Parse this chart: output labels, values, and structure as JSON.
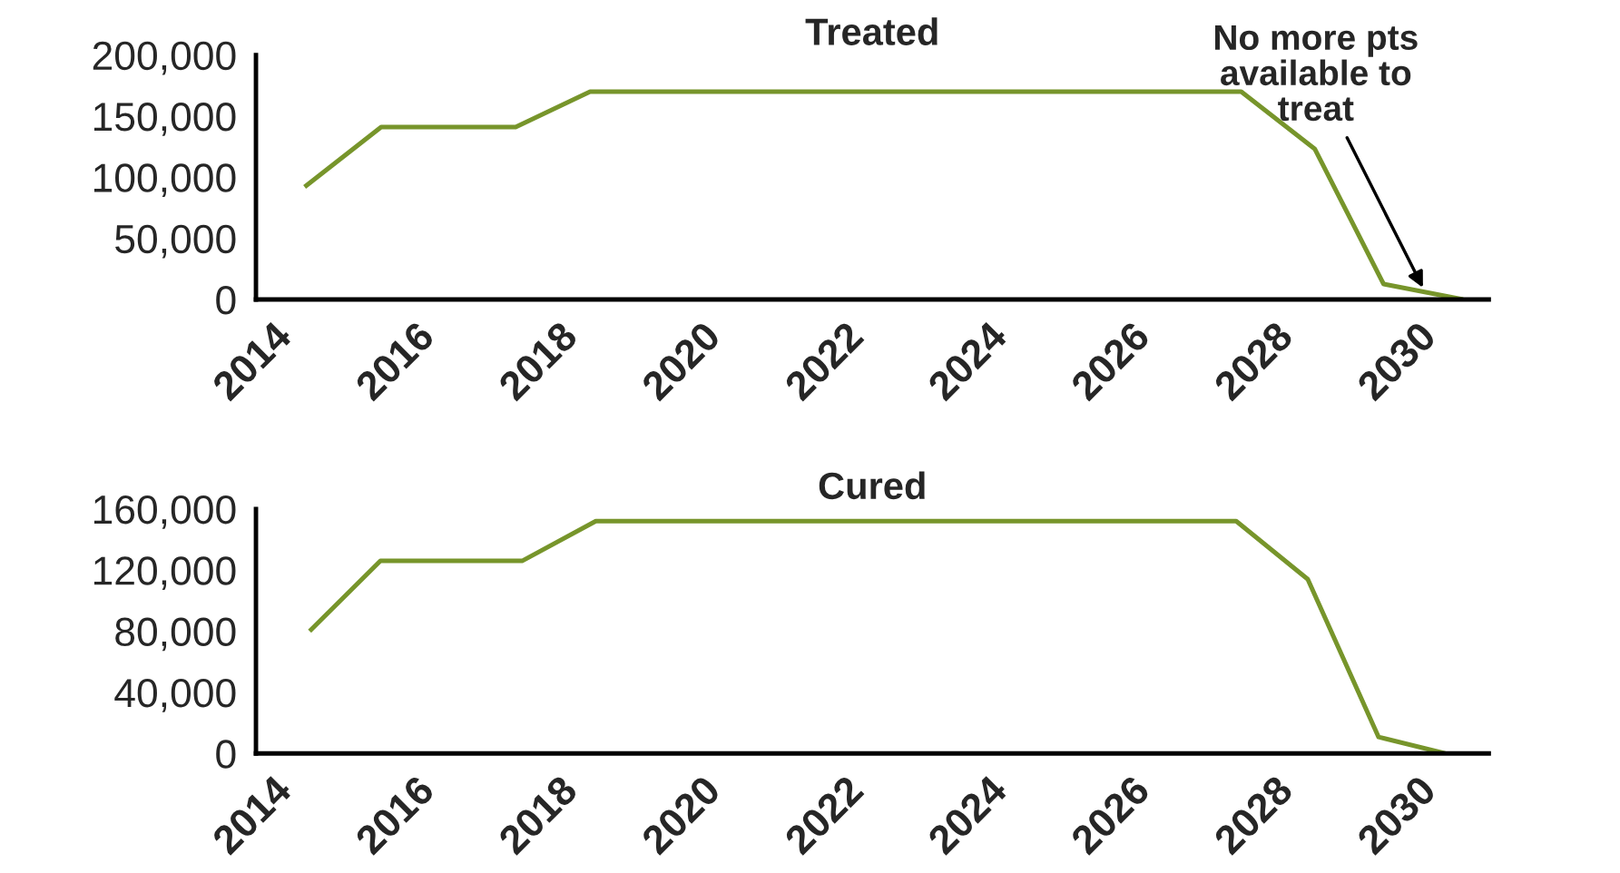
{
  "chart_data": [
    {
      "type": "line",
      "title": "Treated",
      "x": [
        2014.45,
        2015.52,
        2017.4,
        2018.44,
        2027.54,
        2028.57,
        2029.53,
        2030.64
      ],
      "series": [
        {
          "color": "#77952b",
          "values": [
            92000,
            141000,
            141000,
            170000,
            170000,
            123000,
            12600,
            0
          ]
        }
      ],
      "xlim": [
        2013.77,
        2031
      ],
      "xticks": [
        2014,
        2016,
        2018,
        2020,
        2022,
        2024,
        2026,
        2028,
        2030
      ],
      "ylim": [
        0,
        200000
      ],
      "yticks": [
        0,
        {
          "value": 50000,
          "label": "50,000"
        },
        {
          "value": 100000,
          "label": "100,000"
        },
        {
          "value": 150000,
          "label": "150,000"
        },
        {
          "value": 200000,
          "label": "200,000"
        }
      ],
      "annotations": [
        {
          "text": "No more pts\navailable to\ntreat",
          "x": 2030.08,
          "y": 9600
        }
      ]
    },
    {
      "type": "line",
      "title": "Cured",
      "x": [
        2014.52,
        2015.51,
        2017.49,
        2018.52,
        2027.47,
        2028.47,
        2029.46,
        2030.39
      ],
      "series": [
        {
          "color": "#77952b",
          "values": [
            80000,
            126000,
            126000,
            152000,
            152000,
            114000,
            10700,
            0
          ]
        }
      ],
      "xlim": [
        2013.77,
        2031
      ],
      "xticks": [
        2014,
        2016,
        2018,
        2020,
        2022,
        2024,
        2026,
        2028,
        2030
      ],
      "ylim": [
        0,
        160000
      ],
      "yticks": [
        0,
        {
          "value": 40000,
          "label": "40,000"
        },
        {
          "value": 80000,
          "label": "80,000"
        },
        {
          "value": 120000,
          "label": "120,000"
        },
        {
          "value": 160000,
          "label": "160,000"
        }
      ]
    }
  ]
}
